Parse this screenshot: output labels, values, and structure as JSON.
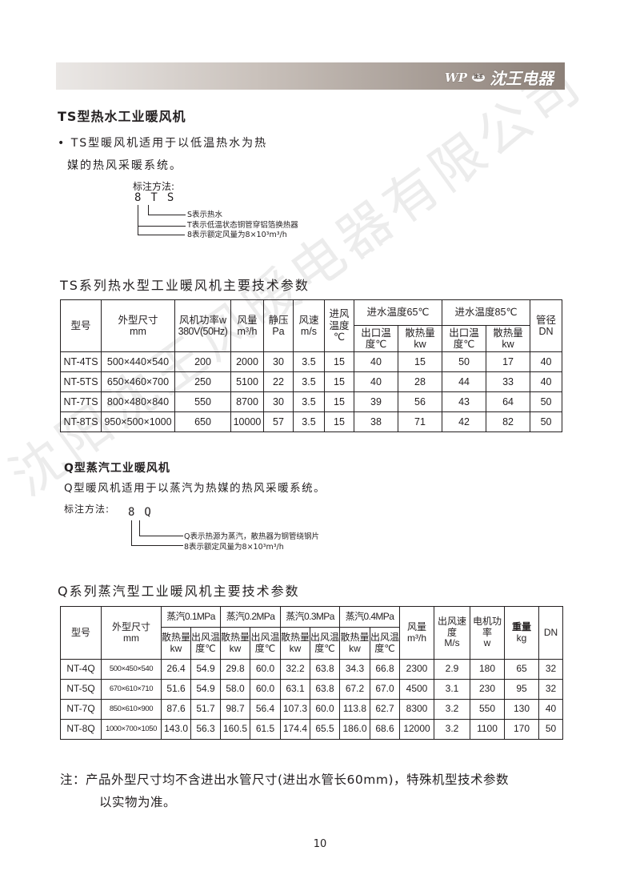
{
  "header": {
    "logo_mark": "WP",
    "logo_seal": "沈王",
    "brand": "沈王电器",
    "bar_color_start": "#ebe8e6",
    "bar_color_end": "#8c8078"
  },
  "watermark": "沈阳沈王风暖电器有限公司",
  "ts": {
    "title": "TS型热水工业暖风机",
    "desc_line1": "• TS型暖风机适用于以低温热水为热",
    "desc_line2": "媒的热风采暖系统。",
    "notation_label": "标注方法:",
    "code": "8TS",
    "ann_s": "S表示热水",
    "ann_t": "T表示低温状态铜管穿铝箔换热器",
    "ann_8": "8表示额定风量为8×10³m³/h",
    "table_title": "TS系列热水型工业暖风机主要技术参数",
    "headers": {
      "model": "型号",
      "size": "外型尺寸",
      "size_unit": "mm",
      "power": "风机功率w",
      "power_unit": "380V(50Hz)",
      "flow": "风量",
      "flow_unit": "m³/h",
      "pressure": "静压",
      "pressure_unit": "Pa",
      "speed": "风速",
      "speed_unit": "m/s",
      "inlet": "进风温度",
      "inlet_unit": "℃",
      "w65": "进水温度65℃",
      "w85": "进水温度85℃",
      "out_temp": "出口温",
      "out_temp2": "度℃",
      "heat": "散热量",
      "heat_unit": "kw",
      "pipe": "管径",
      "pipe_unit": "DN"
    },
    "rows": [
      [
        "NT-4TS",
        "500×440×540",
        "200",
        "2000",
        "30",
        "3.5",
        "15",
        "40",
        "15",
        "50",
        "17",
        "40"
      ],
      [
        "NT-5TS",
        "650×460×700",
        "250",
        "5100",
        "22",
        "3.5",
        "15",
        "40",
        "28",
        "44",
        "33",
        "40"
      ],
      [
        "NT-7TS",
        "800×480×840",
        "550",
        "8700",
        "30",
        "3.5",
        "15",
        "39",
        "56",
        "43",
        "64",
        "50"
      ],
      [
        "NT-8TS",
        "950×500×1000",
        "650",
        "10000",
        "57",
        "3.5",
        "15",
        "38",
        "71",
        "42",
        "82",
        "50"
      ]
    ]
  },
  "q": {
    "title": "Q型蒸汽工业暖风机",
    "desc": "Q型暖风机适用于以蒸汽为热媒的热风采暖系统。",
    "notation_label": "标注方法:",
    "code": "8Q",
    "ann_q": "Q表示热源为蒸汽，散热器为钢管绕钢片",
    "ann_8": "8表示额定风量为8×10³m³/h",
    "table_title": "Q系列蒸汽型工业暖风机主要技术参数",
    "headers": {
      "model": "型号",
      "size": "外型尺寸",
      "size_unit": "mm",
      "steam": [
        "蒸汽0.1MPa",
        "蒸汽0.2MPa",
        "蒸汽0.3MPa",
        "蒸汽0.4MPa"
      ],
      "heat": "散热量",
      "heat_unit": "kw",
      "out_temp": "出风温",
      "out_temp2": "度℃",
      "flow": "风量",
      "flow_unit": "m³/h",
      "speed": "出风速度",
      "speed_unit": "M/s",
      "motor": "电机功率",
      "motor_unit": "w",
      "weight": "重量",
      "weight_unit": "kg",
      "dn": "DN"
    },
    "rows": [
      [
        "NT-4Q",
        "500×450×540",
        "26.4",
        "54.9",
        "29.8",
        "60.0",
        "32.2",
        "63.8",
        "34.3",
        "66.8",
        "2300",
        "2.9",
        "180",
        "65",
        "32"
      ],
      [
        "NT-5Q",
        "670×610×710",
        "51.6",
        "54.9",
        "58.0",
        "60.0",
        "63.1",
        "63.8",
        "67.2",
        "67.0",
        "4500",
        "3.1",
        "230",
        "95",
        "32"
      ],
      [
        "NT-7Q",
        "850×610×900",
        "87.6",
        "51.7",
        "98.7",
        "56.4",
        "107.3",
        "60.0",
        "113.8",
        "62.7",
        "8300",
        "3.2",
        "550",
        "130",
        "40"
      ],
      [
        "NT-8Q",
        "1000×700×1050",
        "143.0",
        "56.3",
        "160.5",
        "61.5",
        "174.4",
        "65.5",
        "186.0",
        "68.6",
        "12000",
        "3.2",
        "1100",
        "170",
        "50"
      ]
    ]
  },
  "note": {
    "line1": "注：产品外型尺寸均不含进出水管尺寸(进出水管长60mm)，特殊机型技术参数",
    "line2": "以实物为准。"
  },
  "page_number": "10"
}
